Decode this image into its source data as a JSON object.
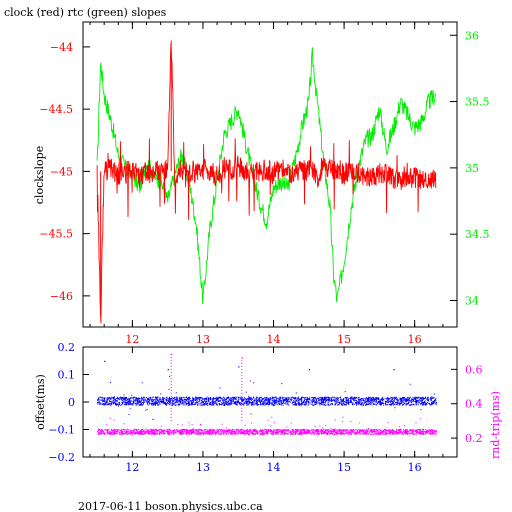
{
  "chart_data": [
    {
      "type": "line",
      "title": "clock (red) rtc (green) slopes",
      "ylabel": "clockslope",
      "xlim": [
        11.3,
        16.6
      ],
      "ylim_left": [
        -46.25,
        -43.8
      ],
      "ylim_right": [
        33.8,
        36.1
      ],
      "x_ticks": [
        "12",
        "13",
        "14",
        "15",
        "16"
      ],
      "y_ticks_left": [
        "-44",
        "-44.5",
        "-45",
        "-45.5",
        "-46"
      ],
      "y_ticks_right": [
        "36",
        "35.5",
        "35",
        "34.5",
        "34"
      ],
      "series": [
        {
          "color": "#ff0000",
          "axis": "left",
          "x": [
            11.5,
            11.55,
            11.6,
            11.7,
            11.8,
            11.9,
            12.0,
            12.1,
            12.2,
            12.3,
            12.4,
            12.5,
            12.55,
            12.6,
            12.7,
            12.8,
            12.9,
            13.0,
            13.1,
            13.2,
            13.3,
            13.4,
            13.5,
            13.6,
            13.7,
            13.8,
            13.9,
            14.0,
            14.1,
            14.2,
            14.3,
            14.4,
            14.5,
            14.6,
            14.7,
            14.8,
            14.9,
            15.0,
            15.1,
            15.2,
            15.3,
            15.4,
            15.5,
            15.6,
            15.7,
            15.8,
            15.9,
            16.0,
            16.1,
            16.2,
            16.3
          ],
          "values": [
            -45.0,
            -46.15,
            -45.0,
            -44.98,
            -45.02,
            -45.0,
            -44.97,
            -45.05,
            -45.0,
            -45.02,
            -44.98,
            -45.0,
            -43.95,
            -45.03,
            -44.98,
            -45.0,
            -45.02,
            -44.98,
            -45.0,
            -45.03,
            -44.97,
            -45.0,
            -44.96,
            -45.0,
            -45.02,
            -45.0,
            -44.98,
            -45.02,
            -44.96,
            -45.0,
            -45.03,
            -44.98,
            -45.0,
            -45.02,
            -44.97,
            -44.99,
            -45.0,
            -45.02,
            -45.0,
            -45.01,
            -45.03,
            -45.04,
            -45.02,
            -45.03,
            -45.05,
            -45.06,
            -45.04,
            -45.05,
            -45.08,
            -45.1,
            -45.05
          ]
        },
        {
          "color": "#00ee00",
          "axis": "right",
          "x": [
            11.5,
            11.55,
            11.6,
            11.7,
            11.8,
            11.9,
            12.0,
            12.1,
            12.2,
            12.3,
            12.4,
            12.5,
            12.6,
            12.7,
            12.8,
            12.9,
            13.0,
            13.1,
            13.2,
            13.3,
            13.4,
            13.5,
            13.6,
            13.7,
            13.8,
            13.9,
            14.0,
            14.1,
            14.2,
            14.3,
            14.4,
            14.5,
            14.55,
            14.6,
            14.7,
            14.8,
            14.85,
            14.9,
            15.0,
            15.1,
            15.2,
            15.3,
            15.4,
            15.5,
            15.6,
            15.7,
            15.8,
            15.9,
            16.0,
            16.1,
            16.2,
            16.3
          ],
          "values": [
            35.0,
            35.8,
            35.55,
            35.35,
            35.1,
            35.0,
            34.95,
            34.85,
            35.05,
            34.95,
            34.9,
            34.75,
            34.95,
            35.1,
            34.9,
            34.6,
            34.0,
            34.55,
            34.9,
            35.25,
            35.35,
            35.45,
            35.2,
            34.95,
            34.75,
            34.6,
            34.85,
            34.9,
            34.85,
            35.05,
            35.3,
            35.5,
            35.85,
            35.6,
            35.1,
            34.7,
            34.2,
            34.0,
            34.3,
            34.7,
            35.0,
            35.2,
            35.25,
            35.45,
            35.15,
            35.3,
            35.5,
            35.4,
            35.3,
            35.35,
            35.5,
            35.55
          ]
        }
      ]
    },
    {
      "type": "scatter",
      "ylabel": "offset(ms)",
      "ylabel_right": "rnd-trip(ms)",
      "xlim": [
        11.3,
        16.6
      ],
      "ylim_left": [
        -0.2,
        0.2
      ],
      "ylim_right": [
        0.09,
        0.73
      ],
      "x_ticks": [
        "12",
        "13",
        "14",
        "15",
        "16"
      ],
      "y_ticks_left": [
        "0.2",
        "0.1",
        "0",
        "-0.1",
        "-0.2"
      ],
      "y_ticks_right": [
        "0.6",
        "0.4",
        "0.2"
      ],
      "series": [
        {
          "color": "#0000ff",
          "axis": "left",
          "x": [
            11.5,
            11.6,
            11.75,
            11.9,
            12.1,
            12.3,
            12.45,
            12.5,
            12.7,
            12.9,
            13.1,
            13.3,
            13.5,
            13.7,
            13.9,
            14.1,
            14.3,
            14.5,
            14.7,
            14.9,
            15.1,
            15.3,
            15.5,
            15.7,
            15.9,
            16.1,
            16.3
          ],
          "values": [
            0.0,
            0.15,
            0.01,
            0.0,
            -0.01,
            0.01,
            0.0,
            0.12,
            0.0,
            0.01,
            0.0,
            -0.01,
            0.13,
            0.0,
            0.01,
            0.0,
            0.0,
            0.12,
            0.0,
            0.01,
            0.0,
            -0.01,
            0.0,
            0.12,
            0.01,
            0.0,
            0.0
          ]
        },
        {
          "color": "#ff00ff",
          "axis": "right",
          "x": [
            11.5,
            11.7,
            11.9,
            12.1,
            12.3,
            12.5,
            12.55,
            12.7,
            12.9,
            13.1,
            13.3,
            13.5,
            13.55,
            13.7,
            13.9,
            14.1,
            14.3,
            14.5,
            14.7,
            14.9,
            15.1,
            15.3,
            15.5,
            15.7,
            15.9,
            16.1,
            16.3
          ],
          "values": [
            0.24,
            0.23,
            0.24,
            0.24,
            0.23,
            0.24,
            0.69,
            0.24,
            0.23,
            0.24,
            0.24,
            0.24,
            0.67,
            0.23,
            0.24,
            0.24,
            0.23,
            0.24,
            0.24,
            0.23,
            0.24,
            0.24,
            0.23,
            0.24,
            0.24,
            0.23,
            0.24
          ]
        }
      ]
    }
  ],
  "footer": "2017-06-11  boson.physics.ubc.ca",
  "colors": {
    "clock": "#ff0000",
    "rtc": "#00ee00",
    "offset": "#0000ff",
    "roundtrip": "#ff00ff"
  }
}
